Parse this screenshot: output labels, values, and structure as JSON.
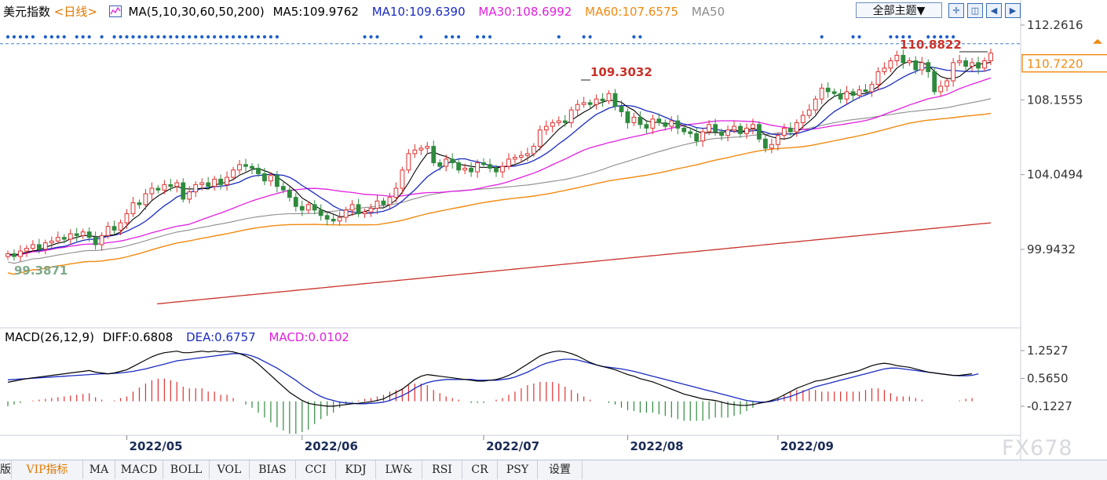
{
  "header": {
    "title": "美元指数",
    "period": "<日线>",
    "ma_label": "MA(5,10,30,60,50,200)",
    "ma5": "MA5:109.9762",
    "ma10": "MA10:109.6390",
    "ma30": "MA30:108.6992",
    "ma60": "MA60:107.6575",
    "ma50": "MA50"
  },
  "toolbar": {
    "theme_label": "全部主题▼"
  },
  "colors": {
    "up": "#e0302f",
    "down": "#2e8b3d",
    "ma5": "#000000",
    "ma10": "#1a2bbf",
    "ma30": "#e020e0",
    "ma60": "#f08a10",
    "ma50": "#8c8c8c",
    "ma200": "#c8322a",
    "diff": "#000000",
    "dea": "#1a2bbf",
    "marker_dots": "#1e5fc8",
    "price_box": "#f08a10"
  },
  "macd_header": {
    "label": "MACD(26,12,9)",
    "diff": "DIFF:0.6808",
    "dea": "DEA:0.6757",
    "macd": "MACD:0.0102"
  },
  "tabs": [
    "版",
    "VIP指标",
    "MA",
    "MACD",
    "BOLL",
    "VOL",
    "BIAS",
    "CCI",
    "KDJ",
    "LW&",
    "RSI",
    "CR",
    "PSY",
    "设置"
  ],
  "watermark": "FX678",
  "chart_data": [
    {
      "type": "candlestick",
      "name": "price",
      "y_axis_ticks": [
        "112.2616",
        "108.1555",
        "104.0494",
        "99.9432"
      ],
      "ylim": [
        97.3,
        112.9
      ],
      "x_ticks": [
        "2022/05",
        "2022/06",
        "2022/07",
        "2022/08",
        "2022/09"
      ],
      "current_price": "110.7220",
      "high_label": "110.8822",
      "mid_high_label": "109.3032",
      "low_label": "99.3871",
      "closes": [
        99.7,
        99.55,
        99.85,
        100.0,
        100.2,
        99.95,
        100.3,
        100.4,
        100.6,
        100.5,
        100.8,
        100.7,
        100.9,
        100.6,
        100.2,
        100.7,
        101.2,
        101.0,
        101.4,
        101.9,
        102.5,
        102.4,
        103.0,
        103.3,
        103.2,
        103.5,
        103.4,
        103.6,
        102.7,
        103.1,
        103.5,
        103.6,
        103.4,
        103.8,
        103.5,
        103.9,
        104.3,
        104.6,
        104.5,
        104.4,
        104.1,
        103.7,
        104.0,
        103.4,
        103.2,
        102.8,
        102.3,
        102.1,
        102.4,
        102.1,
        101.8,
        101.6,
        101.5,
        101.7,
        102.1,
        102.4,
        101.9,
        102.0,
        102.2,
        102.6,
        102.4,
        102.8,
        103.3,
        104.3,
        105.2,
        105.4,
        105.5,
        105.6,
        104.7,
        104.5,
        104.9,
        104.7,
        104.3,
        104.4,
        104.2,
        104.7,
        104.6,
        104.4,
        104.2,
        104.5,
        104.9,
        105.0,
        105.1,
        105.2,
        105.6,
        106.5,
        106.7,
        106.9,
        107.0,
        106.9,
        107.6,
        107.9,
        108.0,
        107.9,
        108.2,
        108.1,
        108.5,
        107.8,
        107.5,
        106.9,
        107.2,
        106.8,
        106.6,
        107.1,
        106.9,
        106.7,
        107.0,
        106.6,
        106.4,
        106.3,
        105.9,
        106.4,
        106.8,
        106.4,
        106.2,
        106.5,
        106.7,
        106.3,
        106.6,
        106.8,
        106.0,
        105.5,
        105.7,
        106.2,
        106.6,
        106.4,
        106.9,
        107.3,
        107.6,
        108.2,
        108.8,
        108.6,
        108.5,
        108.2,
        108.6,
        108.4,
        108.7,
        108.6,
        109.0,
        109.7,
        109.9,
        110.3,
        110.6,
        110.2,
        110.3,
        109.8,
        110.2,
        109.7,
        108.6,
        108.9,
        109.2,
        110.2,
        110.3,
        110.0,
        110.2,
        109.9,
        110.3,
        110.72
      ],
      "ma_series": [
        {
          "name": "MA5"
        },
        {
          "name": "MA10"
        },
        {
          "name": "MA30"
        },
        {
          "name": "MA60"
        },
        {
          "name": "MA50"
        },
        {
          "name": "MA200"
        }
      ]
    },
    {
      "type": "macd",
      "name": "MACD(26,12,9)",
      "y_axis_ticks": [
        "1.2527",
        "0.5650",
        "-0.1227"
      ],
      "ylim": [
        -0.9,
        1.45
      ],
      "diff": [
        0.47,
        0.5,
        0.53,
        0.56,
        0.58,
        0.6,
        0.62,
        0.64,
        0.66,
        0.68,
        0.7,
        0.72,
        0.74,
        0.76,
        0.72,
        0.7,
        0.68,
        0.7,
        0.74,
        0.78,
        0.86,
        0.94,
        1.02,
        1.1,
        1.16,
        1.2,
        1.22,
        1.24,
        1.2,
        1.2,
        1.22,
        1.24,
        1.22,
        1.24,
        1.22,
        1.24,
        1.22,
        1.18,
        1.12,
        1.04,
        0.92,
        0.78,
        0.64,
        0.5,
        0.36,
        0.22,
        0.12,
        0.02,
        -0.05,
        -0.08,
        -0.1,
        -0.12,
        -0.12,
        -0.1,
        -0.08,
        -0.06,
        -0.05,
        -0.03,
        -0.01,
        0.02,
        0.06,
        0.14,
        0.22,
        0.3,
        0.42,
        0.54,
        0.62,
        0.66,
        0.64,
        0.62,
        0.6,
        0.58,
        0.56,
        0.54,
        0.52,
        0.5,
        0.5,
        0.52,
        0.54,
        0.58,
        0.64,
        0.72,
        0.82,
        0.92,
        1.02,
        1.12,
        1.18,
        1.22,
        1.24,
        1.22,
        1.18,
        1.12,
        1.04,
        0.96,
        0.9,
        0.86,
        0.82,
        0.78,
        0.72,
        0.66,
        0.62,
        0.56,
        0.52,
        0.48,
        0.42,
        0.36,
        0.3,
        0.24,
        0.18,
        0.14,
        0.1,
        0.06,
        0.04,
        0.02,
        -0.02,
        -0.06,
        -0.08,
        -0.1,
        -0.1,
        -0.08,
        -0.05,
        -0.02,
        0.02,
        0.08,
        0.16,
        0.24,
        0.32,
        0.38,
        0.44,
        0.5,
        0.52,
        0.56,
        0.6,
        0.64,
        0.68,
        0.72,
        0.76,
        0.82,
        0.88,
        0.92,
        0.94,
        0.92,
        0.88,
        0.86,
        0.84,
        0.8,
        0.76,
        0.72,
        0.7,
        0.68,
        0.66,
        0.64,
        0.64,
        0.66,
        0.68
      ],
      "dea": [
        0.53,
        0.54,
        0.55,
        0.56,
        0.57,
        0.58,
        0.59,
        0.6,
        0.61,
        0.62,
        0.63,
        0.64,
        0.65,
        0.66,
        0.67,
        0.68,
        0.68,
        0.69,
        0.7,
        0.72,
        0.74,
        0.77,
        0.8,
        0.84,
        0.88,
        0.92,
        0.96,
        1.0,
        1.02,
        1.04,
        1.06,
        1.08,
        1.1,
        1.12,
        1.14,
        1.16,
        1.18,
        1.18,
        1.16,
        1.12,
        1.06,
        0.98,
        0.9,
        0.82,
        0.72,
        0.62,
        0.52,
        0.4,
        0.3,
        0.2,
        0.12,
        0.06,
        0.02,
        -0.02,
        -0.04,
        -0.05,
        -0.06,
        -0.06,
        -0.05,
        -0.04,
        -0.02,
        0.02,
        0.08,
        0.14,
        0.22,
        0.32,
        0.4,
        0.46,
        0.5,
        0.52,
        0.54,
        0.54,
        0.54,
        0.54,
        0.54,
        0.52,
        0.52,
        0.52,
        0.52,
        0.54,
        0.56,
        0.6,
        0.66,
        0.72,
        0.8,
        0.88,
        0.94,
        0.98,
        1.02,
        1.04,
        1.04,
        1.02,
        0.98,
        0.94,
        0.9,
        0.86,
        0.84,
        0.82,
        0.8,
        0.77,
        0.74,
        0.7,
        0.66,
        0.62,
        0.58,
        0.54,
        0.5,
        0.46,
        0.42,
        0.38,
        0.34,
        0.3,
        0.26,
        0.22,
        0.18,
        0.14,
        0.1,
        0.06,
        0.02,
        0.0,
        -0.02,
        -0.02,
        0.0,
        0.04,
        0.08,
        0.12,
        0.18,
        0.24,
        0.3,
        0.36,
        0.4,
        0.44,
        0.48,
        0.52,
        0.56,
        0.6,
        0.64,
        0.68,
        0.72,
        0.76,
        0.8,
        0.82,
        0.82,
        0.8,
        0.78,
        0.76,
        0.74,
        0.72,
        0.7,
        0.68,
        0.66,
        0.64,
        0.63,
        0.63,
        0.64,
        0.68
      ]
    }
  ]
}
